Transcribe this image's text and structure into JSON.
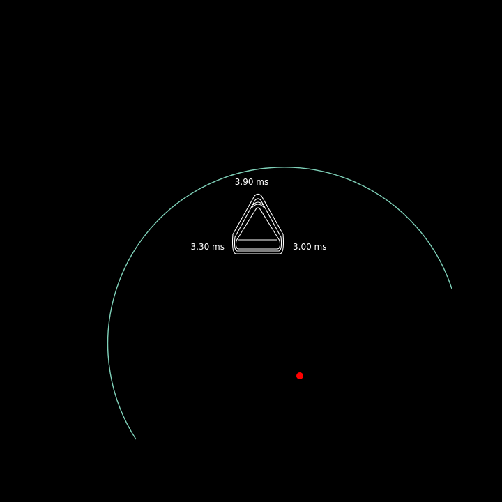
{
  "colors": {
    "background": "#000000",
    "arc": "#7fd1b9",
    "triangle_outline": "#ffffff",
    "center_marker": "#ff0000",
    "label_text": "#ffffff"
  },
  "labels": {
    "top": "3.90 ms",
    "left": "3.30 ms",
    "right": "3.00 ms"
  }
}
